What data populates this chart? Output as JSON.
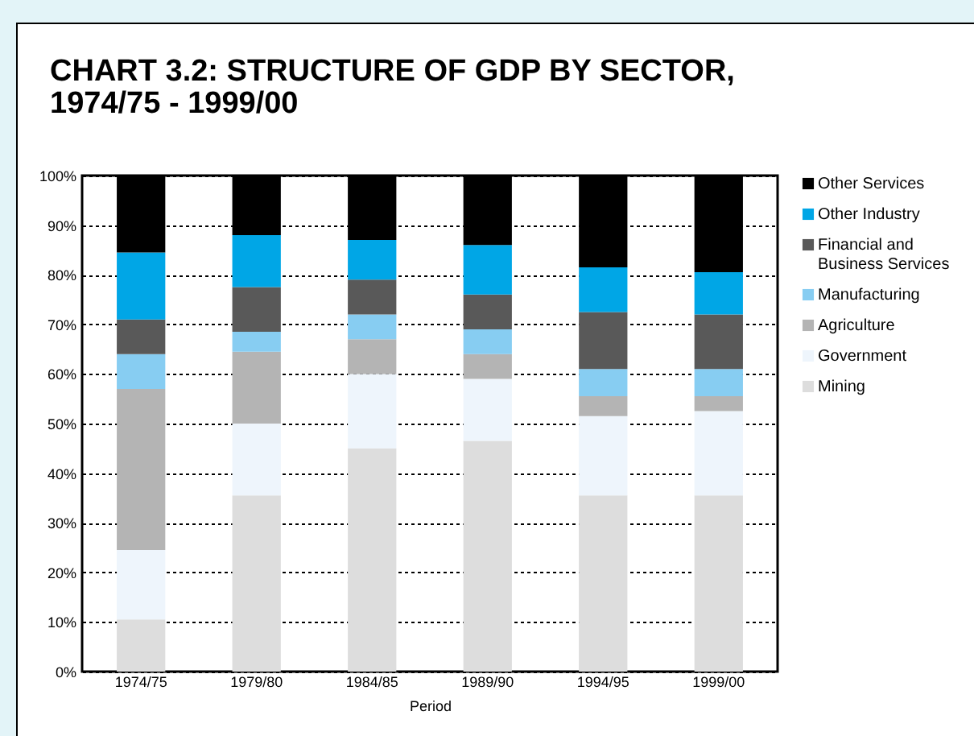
{
  "chart_data": {
    "type": "bar",
    "stacked": true,
    "title": "CHART 3.2: STRUCTURE OF GDP BY SECTOR, 1974/75 - 1999/00",
    "xlabel": "Period",
    "categories": [
      "1974/75",
      "1979/80",
      "1984/85",
      "1989/90",
      "1994/95",
      "1999/00"
    ],
    "series": [
      {
        "name": "Mining",
        "color": "#dddddd",
        "values": [
          10.5,
          35.5,
          45,
          46.5,
          35.5,
          35.5
        ]
      },
      {
        "name": "Government",
        "color": "#eef5fc",
        "values": [
          14,
          14.5,
          15,
          12.5,
          16,
          17
        ]
      },
      {
        "name": "Agriculture",
        "color": "#b4b4b4",
        "values": [
          32.5,
          14.5,
          7,
          5,
          4,
          3
        ]
      },
      {
        "name": "Manufacturing",
        "color": "#87cdf2",
        "values": [
          7,
          4,
          5,
          5,
          5.5,
          5.5
        ]
      },
      {
        "name": "Financial and Business Services",
        "color": "#595959",
        "values": [
          7,
          9,
          7,
          7,
          11.5,
          11
        ]
      },
      {
        "name": "Other Industry",
        "color": "#00a6e6",
        "values": [
          13.5,
          10.5,
          8,
          10,
          9,
          8.5
        ]
      },
      {
        "name": "Other Services",
        "color": "#000000",
        "values": [
          15.5,
          12,
          13,
          14,
          18.5,
          19.5
        ]
      }
    ],
    "ylim": [
      0,
      100
    ],
    "yticks": [
      {
        "value": 0,
        "label": "0%"
      },
      {
        "value": 10,
        "label": "10%"
      },
      {
        "value": 20,
        "label": "20%"
      },
      {
        "value": 30,
        "label": "30%"
      },
      {
        "value": 40,
        "label": "40%"
      },
      {
        "value": 50,
        "label": "50%"
      },
      {
        "value": 60,
        "label": "60%"
      },
      {
        "value": 70,
        "label": "70%"
      },
      {
        "value": 80,
        "label": "80%"
      },
      {
        "value": 90,
        "label": "90%"
      },
      {
        "value": 100,
        "label": "100%"
      }
    ],
    "grid": "y",
    "legend": "right"
  }
}
